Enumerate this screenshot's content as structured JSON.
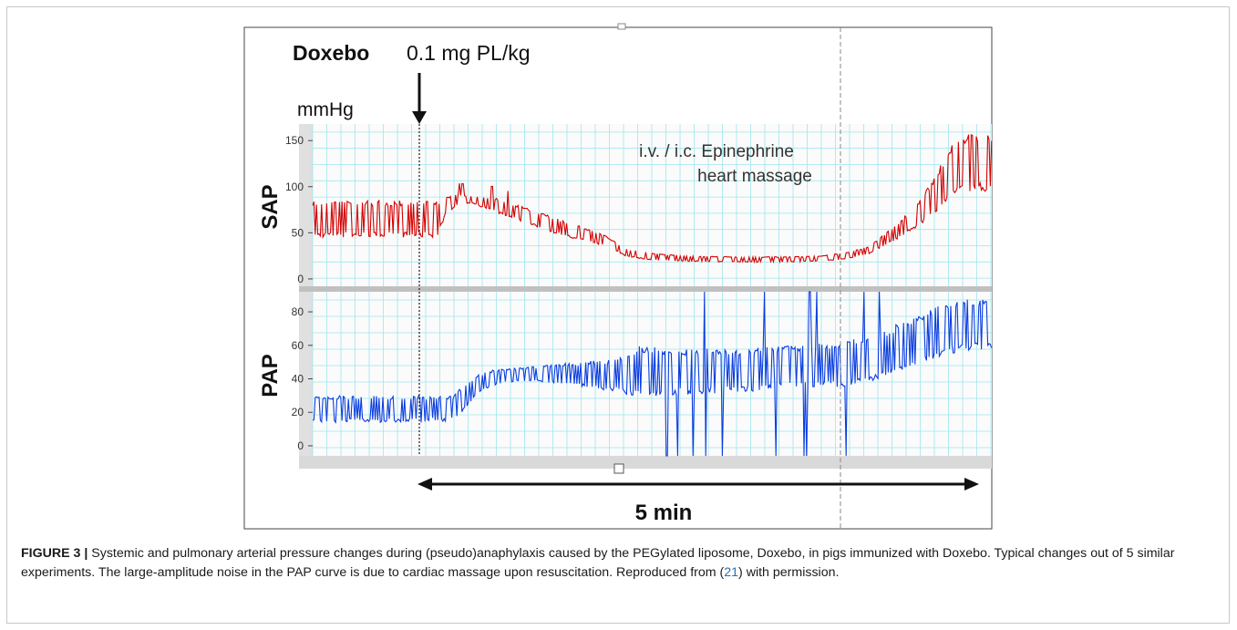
{
  "figure": {
    "drug_name": "Doxebo",
    "dose": "0.1 mg PL/kg",
    "unit": "mmHg",
    "annotation_line1": "i.v. / i.c. Epinephrine",
    "annotation_line2": "heart massage",
    "duration_label": "5 min"
  },
  "caption": {
    "label": "FIGURE 3 |",
    "text_before_ref": " Systemic and pulmonary arterial pressure changes during (pseudo)anaphylaxis caused by the PEGylated liposome, Doxebo, in pigs immunized with Doxebo. Typical changes out of 5 similar experiments. The large-amplitude noise in the PAP curve is due to cardiac massage upon resuscitation. Reproduced from (",
    "ref": "21",
    "text_after_ref": ") with permission."
  },
  "chart_data": [
    {
      "type": "line",
      "ylabel": "SAP",
      "unit": "mmHg",
      "ylim": [
        -8,
        168
      ],
      "yticks": [
        0,
        50,
        100,
        150
      ],
      "grid": true,
      "color": "#d40000",
      "x_unit": "min",
      "x": [
        0.0,
        0.4,
        0.52,
        0.58,
        0.68,
        0.8,
        1.0,
        1.3,
        1.6,
        1.9,
        2.1,
        2.3,
        2.6,
        3.0,
        3.4,
        3.7,
        3.9,
        4.1,
        4.3,
        4.5,
        4.65,
        4.75,
        4.85,
        5.0,
        5.13
      ],
      "systolic": [
        85,
        85,
        85,
        88,
        92,
        90,
        88,
        75,
        62,
        48,
        32,
        28,
        25,
        24,
        24,
        25,
        28,
        35,
        55,
        80,
        110,
        135,
        155,
        158,
        155
      ],
      "diastolic": [
        45,
        45,
        45,
        68,
        80,
        82,
        72,
        58,
        45,
        36,
        24,
        20,
        19,
        18,
        18,
        19,
        21,
        27,
        40,
        55,
        70,
        82,
        92,
        96,
        92
      ]
    },
    {
      "type": "line",
      "ylabel": "PAP",
      "unit": "mmHg",
      "ylim": [
        -6,
        92
      ],
      "yticks": [
        0,
        20,
        40,
        60,
        80
      ],
      "grid": true,
      "color": "#0a3de0",
      "x_unit": "min",
      "x": [
        0.0,
        0.4,
        0.65,
        0.75,
        0.85,
        0.95,
        1.1,
        1.4,
        1.7,
        2.0,
        2.2,
        2.5,
        3.0,
        3.5,
        3.9,
        4.2,
        4.5,
        4.8,
        5.13
      ],
      "systolic": [
        30,
        30,
        30,
        38,
        42,
        45,
        46,
        48,
        50,
        52,
        60,
        58,
        58,
        60,
        62,
        68,
        78,
        88,
        88
      ],
      "diastolic": [
        14,
        14,
        15,
        22,
        30,
        35,
        38,
        38,
        35,
        32,
        28,
        30,
        32,
        34,
        35,
        40,
        48,
        55,
        58
      ]
    }
  ]
}
